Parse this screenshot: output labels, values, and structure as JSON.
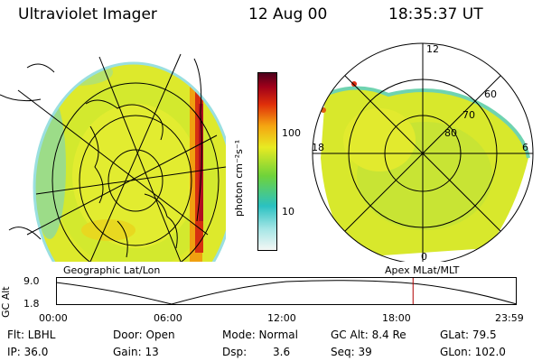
{
  "header": {
    "instrument": "Ultraviolet Imager",
    "date": "12 Aug 00",
    "time": "18:35:37 UT"
  },
  "colorbar": {
    "unit_label": "photon cm⁻²s⁻¹",
    "ticks": [
      "100",
      "10"
    ],
    "colors": [
      "#f5f7f5",
      "#a6e6e6",
      "#2bc1c1",
      "#6fd33a",
      "#e8ea22",
      "#f5a511",
      "#e0300a",
      "#a0001a",
      "#4a001c"
    ]
  },
  "left_panel": {
    "caption": "Geographic Lat/Lon",
    "background_color": "#d6e82a"
  },
  "right_panel": {
    "caption": "Apex MLat/MLT",
    "mlt_labels": {
      "top": "12",
      "left": "18",
      "right": "6",
      "bottom": "0"
    },
    "lat_labels": [
      "60",
      "70",
      "80"
    ]
  },
  "altitude_plot": {
    "axis_label": "GC Alt",
    "y_ticks": [
      "9.0",
      "1.8"
    ],
    "x_ticks": [
      "00:00",
      "06:00",
      "12:00",
      "18:00",
      "23:59"
    ],
    "marker_hours": 18.6,
    "marker_color": "#b00000"
  },
  "footer": {
    "flt": "Flt: LBHL",
    "ip": "IP: 36.0",
    "door": "Door: Open",
    "gain": "Gain: 13",
    "mode": "Mode: Normal",
    "dsp_label": "Dsp:",
    "dsp_value": "3.6",
    "gc_alt": "GC Alt: 8.4 Re",
    "seq": "Seq: 39",
    "glat": "GLat: 79.5",
    "glon": "GLon: 102.0"
  }
}
